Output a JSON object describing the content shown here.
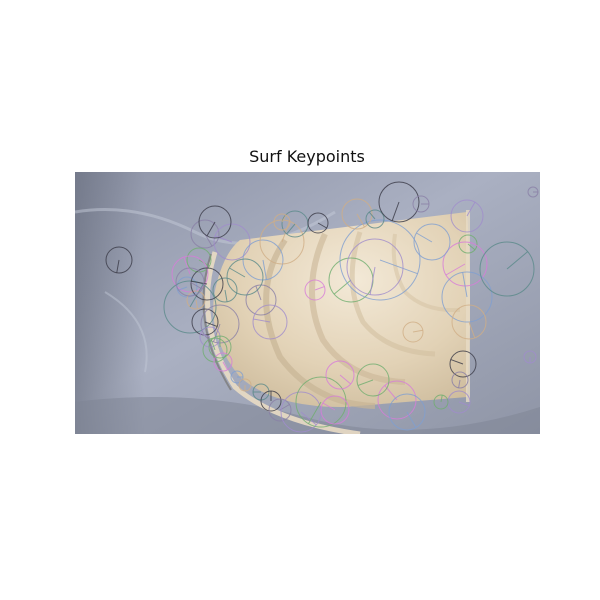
{
  "figure": {
    "title": "Surf Keypoints"
  },
  "palette": {
    "background_dark": "#6b7180",
    "background_mid": "#9aa0b3",
    "background_light": "#b9bfd0",
    "board_light": "#efe2cc",
    "board_mid": "#d9c7a9",
    "keypoint_colors": [
      "#3a3a46",
      "#8a7fa6",
      "#a08ccc",
      "#6fae6f",
      "#d77cd9",
      "#7f9fd1",
      "#cfae86",
      "#5a8a8a"
    ]
  }
}
